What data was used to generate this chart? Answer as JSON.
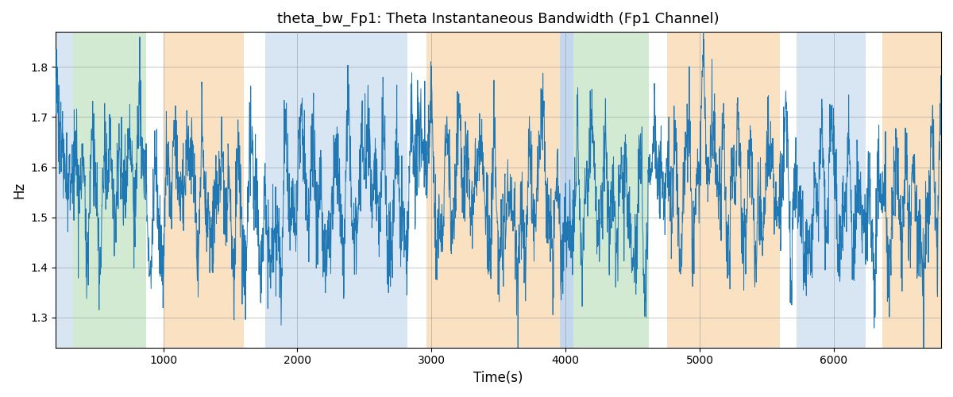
{
  "title": "theta_bw_Fp1: Theta Instantaneous Bandwidth (Fp1 Channel)",
  "xlabel": "Time(s)",
  "ylabel": "Hz",
  "xlim": [
    200,
    6800
  ],
  "ylim": [
    1.24,
    1.87
  ],
  "yticks": [
    1.3,
    1.4,
    1.5,
    1.6,
    1.7,
    1.8
  ],
  "xticks": [
    1000,
    2000,
    3000,
    4000,
    5000,
    6000
  ],
  "line_color": "#1f77b4",
  "line_width": 0.7,
  "background_bands": [
    {
      "xmin": 200,
      "xmax": 330,
      "color": "#aac8e8",
      "alpha": 0.45
    },
    {
      "xmin": 330,
      "xmax": 870,
      "color": "#90c990",
      "alpha": 0.4
    },
    {
      "xmin": 870,
      "xmax": 1000,
      "color": "#ffffff",
      "alpha": 0.0
    },
    {
      "xmin": 1000,
      "xmax": 1600,
      "color": "#f5c990",
      "alpha": 0.55
    },
    {
      "xmin": 1600,
      "xmax": 1760,
      "color": "#ffffff",
      "alpha": 0.0
    },
    {
      "xmin": 1760,
      "xmax": 2820,
      "color": "#aac8e8",
      "alpha": 0.45
    },
    {
      "xmin": 2820,
      "xmax": 2960,
      "color": "#ffffff",
      "alpha": 0.0
    },
    {
      "xmin": 2960,
      "xmax": 3960,
      "color": "#f5c990",
      "alpha": 0.55
    },
    {
      "xmin": 3960,
      "xmax": 4060,
      "color": "#aac8e8",
      "alpha": 0.7
    },
    {
      "xmin": 4060,
      "xmax": 4620,
      "color": "#90c990",
      "alpha": 0.4
    },
    {
      "xmin": 4620,
      "xmax": 4760,
      "color": "#ffffff",
      "alpha": 0.0
    },
    {
      "xmin": 4760,
      "xmax": 5600,
      "color": "#f5c990",
      "alpha": 0.55
    },
    {
      "xmin": 5600,
      "xmax": 5720,
      "color": "#ffffff",
      "alpha": 0.0
    },
    {
      "xmin": 5720,
      "xmax": 6240,
      "color": "#aac8e8",
      "alpha": 0.45
    },
    {
      "xmin": 6240,
      "xmax": 6360,
      "color": "#ffffff",
      "alpha": 0.0
    },
    {
      "xmin": 6360,
      "xmax": 6800,
      "color": "#f5c990",
      "alpha": 0.55
    }
  ],
  "n_points": 3200,
  "x_start": 200,
  "x_end": 6800,
  "seed": 1234
}
